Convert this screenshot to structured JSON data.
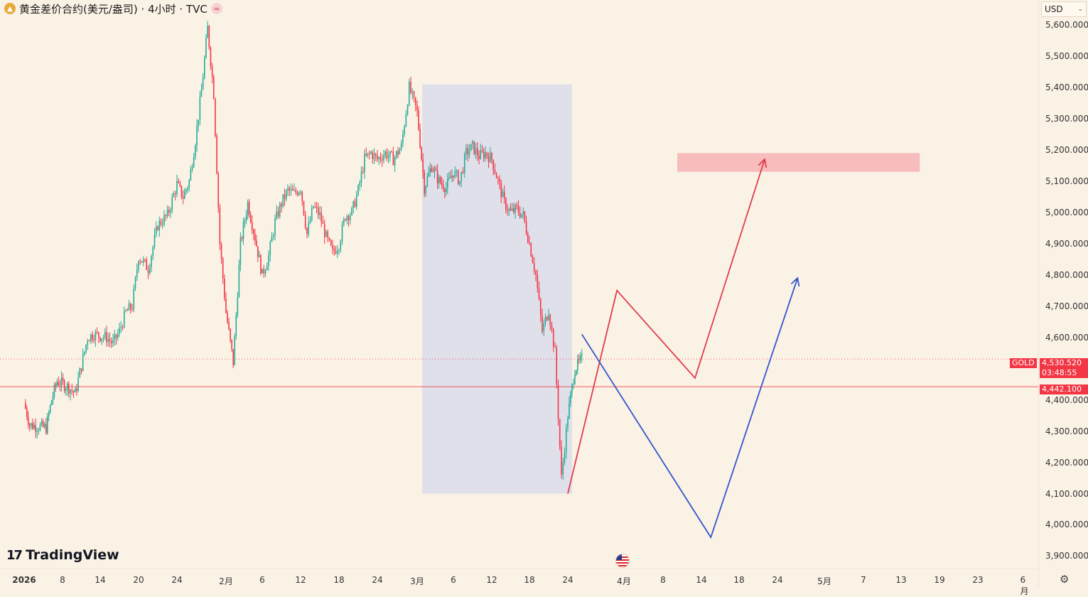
{
  "header": {
    "title": "黄金差价合约(美元/盎司) · 4小时 · TVC",
    "logo_icon": "gold-bars-icon",
    "badge_icon": "wave-icon",
    "badge_text": "≈"
  },
  "currency": {
    "label": "USD",
    "icon": "chevron-down-icon"
  },
  "branding": {
    "name": "TradingView",
    "mark": "17"
  },
  "price_tags": {
    "gold_label": "GOLD",
    "gold_price": "4,530.520",
    "countdown": "03:48:55",
    "ref_price": "4,442.100"
  },
  "colors": {
    "background": "#fbf2e6",
    "up": "#22ab94",
    "down": "#f23645",
    "forecast_red": "#e03c4c",
    "forecast_blue": "#3355cc",
    "box": "#e0e0eb",
    "target_zone": "#f6b3b3"
  },
  "chart_data": {
    "type": "candlestick",
    "title": "黄金差价合约(美元/盎司) · 4小时 · TVC",
    "ylim": [
      3860,
      5680
    ],
    "y_ticks": [
      3900,
      4000,
      4100,
      4200,
      4300,
      4400,
      4500,
      4600,
      4700,
      4800,
      4900,
      5000,
      5100,
      5200,
      5300,
      5400,
      5500,
      5600
    ],
    "y_tick_labels": [
      "3,900.000",
      "4,000.000",
      "4,100.000",
      "4,200.000",
      "4,300.000",
      "4,400.000",
      "4,500.000",
      "4,600.000",
      "4,700.000",
      "4,800.000",
      "4,900.000",
      "5,000.000",
      "5,100.000",
      "5,200.000",
      "5,300.000",
      "5,400.000",
      "5,500.000",
      "5,600.000"
    ],
    "x_labels": [
      {
        "text": "2026",
        "date": "2026-01-01",
        "bold": true
      },
      {
        "text": "8",
        "date": "2026-01-08"
      },
      {
        "text": "14",
        "date": "2026-01-14"
      },
      {
        "text": "20",
        "date": "2026-01-20"
      },
      {
        "text": "24",
        "date": "2026-01-24"
      },
      {
        "text": "2月",
        "date": "2026-02-01"
      },
      {
        "text": "6",
        "date": "2026-02-06"
      },
      {
        "text": "12",
        "date": "2026-02-12"
      },
      {
        "text": "18",
        "date": "2026-02-18"
      },
      {
        "text": "24",
        "date": "2026-02-24"
      },
      {
        "text": "3月",
        "date": "2026-03-01"
      },
      {
        "text": "6",
        "date": "2026-03-06"
      },
      {
        "text": "12",
        "date": "2026-03-12"
      },
      {
        "text": "18",
        "date": "2026-03-18"
      },
      {
        "text": "24",
        "date": "2026-03-24"
      },
      {
        "text": "4月",
        "date": "2026-04-01"
      },
      {
        "text": "8",
        "date": "2026-04-08"
      },
      {
        "text": "14",
        "date": "2026-04-14"
      },
      {
        "text": "18",
        "date": "2026-04-18"
      },
      {
        "text": "24",
        "date": "2026-04-24"
      },
      {
        "text": "5月",
        "date": "2026-05-01"
      },
      {
        "text": "7",
        "date": "2026-05-07"
      },
      {
        "text": "13",
        "date": "2026-05-13"
      },
      {
        "text": "19",
        "date": "2026-05-19"
      },
      {
        "text": "23",
        "date": "2026-05-23"
      },
      {
        "text": "6月",
        "date": "2026-06-01"
      }
    ],
    "price_path": [
      [
        "2026-01-01",
        4390
      ],
      [
        "2026-01-02",
        4320
      ],
      [
        "2026-01-05",
        4310
      ],
      [
        "2026-01-06",
        4400
      ],
      [
        "2026-01-07",
        4460
      ],
      [
        "2026-01-09",
        4440
      ],
      [
        "2026-01-10",
        4420
      ],
      [
        "2026-01-11",
        4510
      ],
      [
        "2026-01-12",
        4600
      ],
      [
        "2026-01-13",
        4610
      ],
      [
        "2026-01-15",
        4600
      ],
      [
        "2026-01-16",
        4580
      ],
      [
        "2026-01-17",
        4620
      ],
      [
        "2026-01-18",
        4680
      ],
      [
        "2026-01-19",
        4700
      ],
      [
        "2026-01-20",
        4860
      ],
      [
        "2026-01-21",
        4820
      ],
      [
        "2026-01-22",
        4960
      ],
      [
        "2026-01-23",
        4990
      ],
      [
        "2026-01-24",
        5090
      ],
      [
        "2026-01-25",
        5050
      ],
      [
        "2026-01-26",
        5100
      ],
      [
        "2026-01-27",
        5230
      ],
      [
        "2026-01-28",
        5390
      ],
      [
        "2026-01-29",
        5590
      ],
      [
        "2026-01-30",
        5380
      ],
      [
        "2026-01-31",
        4900
      ],
      [
        "2026-02-01",
        4680
      ],
      [
        "2026-02-02",
        4520
      ],
      [
        "2026-02-03",
        4900
      ],
      [
        "2026-02-04",
        5030
      ],
      [
        "2026-02-05",
        4920
      ],
      [
        "2026-02-06",
        4800
      ],
      [
        "2026-02-07",
        4860
      ],
      [
        "2026-02-08",
        4970
      ],
      [
        "2026-02-09",
        5030
      ],
      [
        "2026-02-10",
        5070
      ],
      [
        "2026-02-11",
        5060
      ],
      [
        "2026-02-12",
        5080
      ],
      [
        "2026-02-13",
        4930
      ],
      [
        "2026-02-14",
        5020
      ],
      [
        "2026-02-15",
        4990
      ],
      [
        "2026-02-16",
        4920
      ],
      [
        "2026-02-17",
        4870
      ],
      [
        "2026-02-18",
        4900
      ],
      [
        "2026-02-19",
        4990
      ],
      [
        "2026-02-20",
        5000
      ],
      [
        "2026-02-21",
        5070
      ],
      [
        "2026-02-22",
        5170
      ],
      [
        "2026-02-23",
        5190
      ],
      [
        "2026-02-24",
        5170
      ],
      [
        "2026-02-25",
        5190
      ],
      [
        "2026-02-26",
        5170
      ],
      [
        "2026-02-27",
        5210
      ],
      [
        "2026-02-28",
        5400
      ],
      [
        "2026-03-01",
        5320
      ],
      [
        "2026-03-02",
        5080
      ],
      [
        "2026-03-03",
        5150
      ],
      [
        "2026-03-04",
        5100
      ],
      [
        "2026-03-05",
        5080
      ],
      [
        "2026-03-06",
        5130
      ],
      [
        "2026-03-07",
        5100
      ],
      [
        "2026-03-08",
        5190
      ],
      [
        "2026-03-09",
        5210
      ],
      [
        "2026-03-10",
        5180
      ],
      [
        "2026-03-11",
        5190
      ],
      [
        "2026-03-12",
        5170
      ],
      [
        "2026-03-13",
        5100
      ],
      [
        "2026-03-14",
        5030
      ],
      [
        "2026-03-15",
        5000
      ],
      [
        "2026-03-16",
        5010
      ],
      [
        "2026-03-17",
        4990
      ],
      [
        "2026-03-18",
        4900
      ],
      [
        "2026-03-19",
        4800
      ],
      [
        "2026-03-20",
        4620
      ],
      [
        "2026-03-21",
        4690
      ],
      [
        "2026-03-22",
        4550
      ],
      [
        "2026-03-23",
        4150
      ],
      [
        "2026-03-24",
        4350
      ],
      [
        "2026-03-25",
        4500
      ],
      [
        "2026-03-26",
        4530
      ]
    ],
    "annotations": {
      "box": {
        "x0": "2026-03-01",
        "x1": "2026-03-23",
        "y0": 4100,
        "y1": 5410
      },
      "target_zone": {
        "x0": "2026-04-08",
        "x1": "2026-05-11",
        "y0": 5130,
        "y1": 5190
      },
      "horizontal_lines": [
        {
          "price": 4530.52,
          "style": "dotted"
        },
        {
          "price": 4442.1,
          "style": "solid"
        }
      ],
      "red_forecast": [
        [
          "2026-03-24",
          4100
        ],
        [
          "2026-03-31",
          4750
        ],
        [
          "2026-04-13",
          4470
        ],
        [
          "2026-04-22",
          5170
        ]
      ],
      "blue_forecast": [
        [
          "2026-03-26",
          4610
        ],
        [
          "2026-04-15",
          3960
        ],
        [
          "2026-04-27",
          4790
        ]
      ]
    }
  }
}
